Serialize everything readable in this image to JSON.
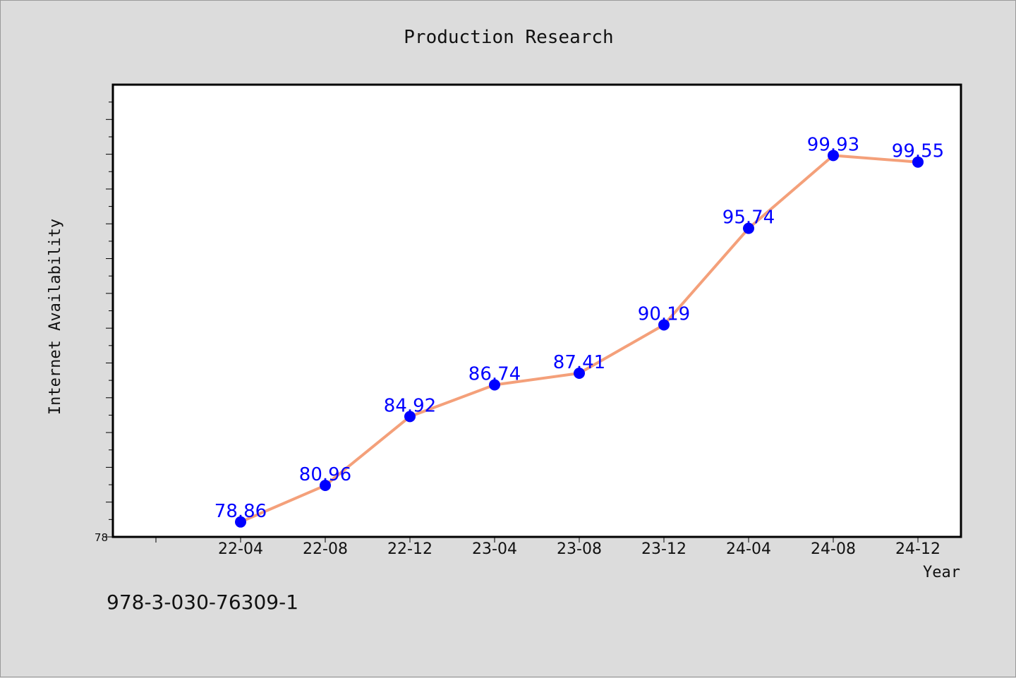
{
  "chart_data": {
    "type": "line",
    "title": "Production Research",
    "xlabel": "Year",
    "ylabel": "Internet Availability",
    "categories": [
      "22-04",
      "22-08",
      "22-12",
      "23-04",
      "23-08",
      "23-12",
      "24-04",
      "24-08",
      "24-12"
    ],
    "series": [
      {
        "values": [
          78.86,
          80.96,
          84.92,
          86.74,
          87.41,
          90.19,
          95.74,
          99.93,
          99.55
        ]
      }
    ],
    "data_labels": [
      "78.86",
      "80.96",
      "84.92",
      "86.74",
      "87.41",
      "90.19",
      "95.74",
      "99.93",
      "99.55"
    ],
    "y_tick_labels": [
      "78"
    ],
    "ylim": [
      78,
      104
    ],
    "grid": false,
    "line_color": "#f4a07a",
    "marker_color": "#0000ff",
    "label_color": "#0000ff"
  },
  "footer": {
    "isbn": "978-3-030-76309-1"
  }
}
